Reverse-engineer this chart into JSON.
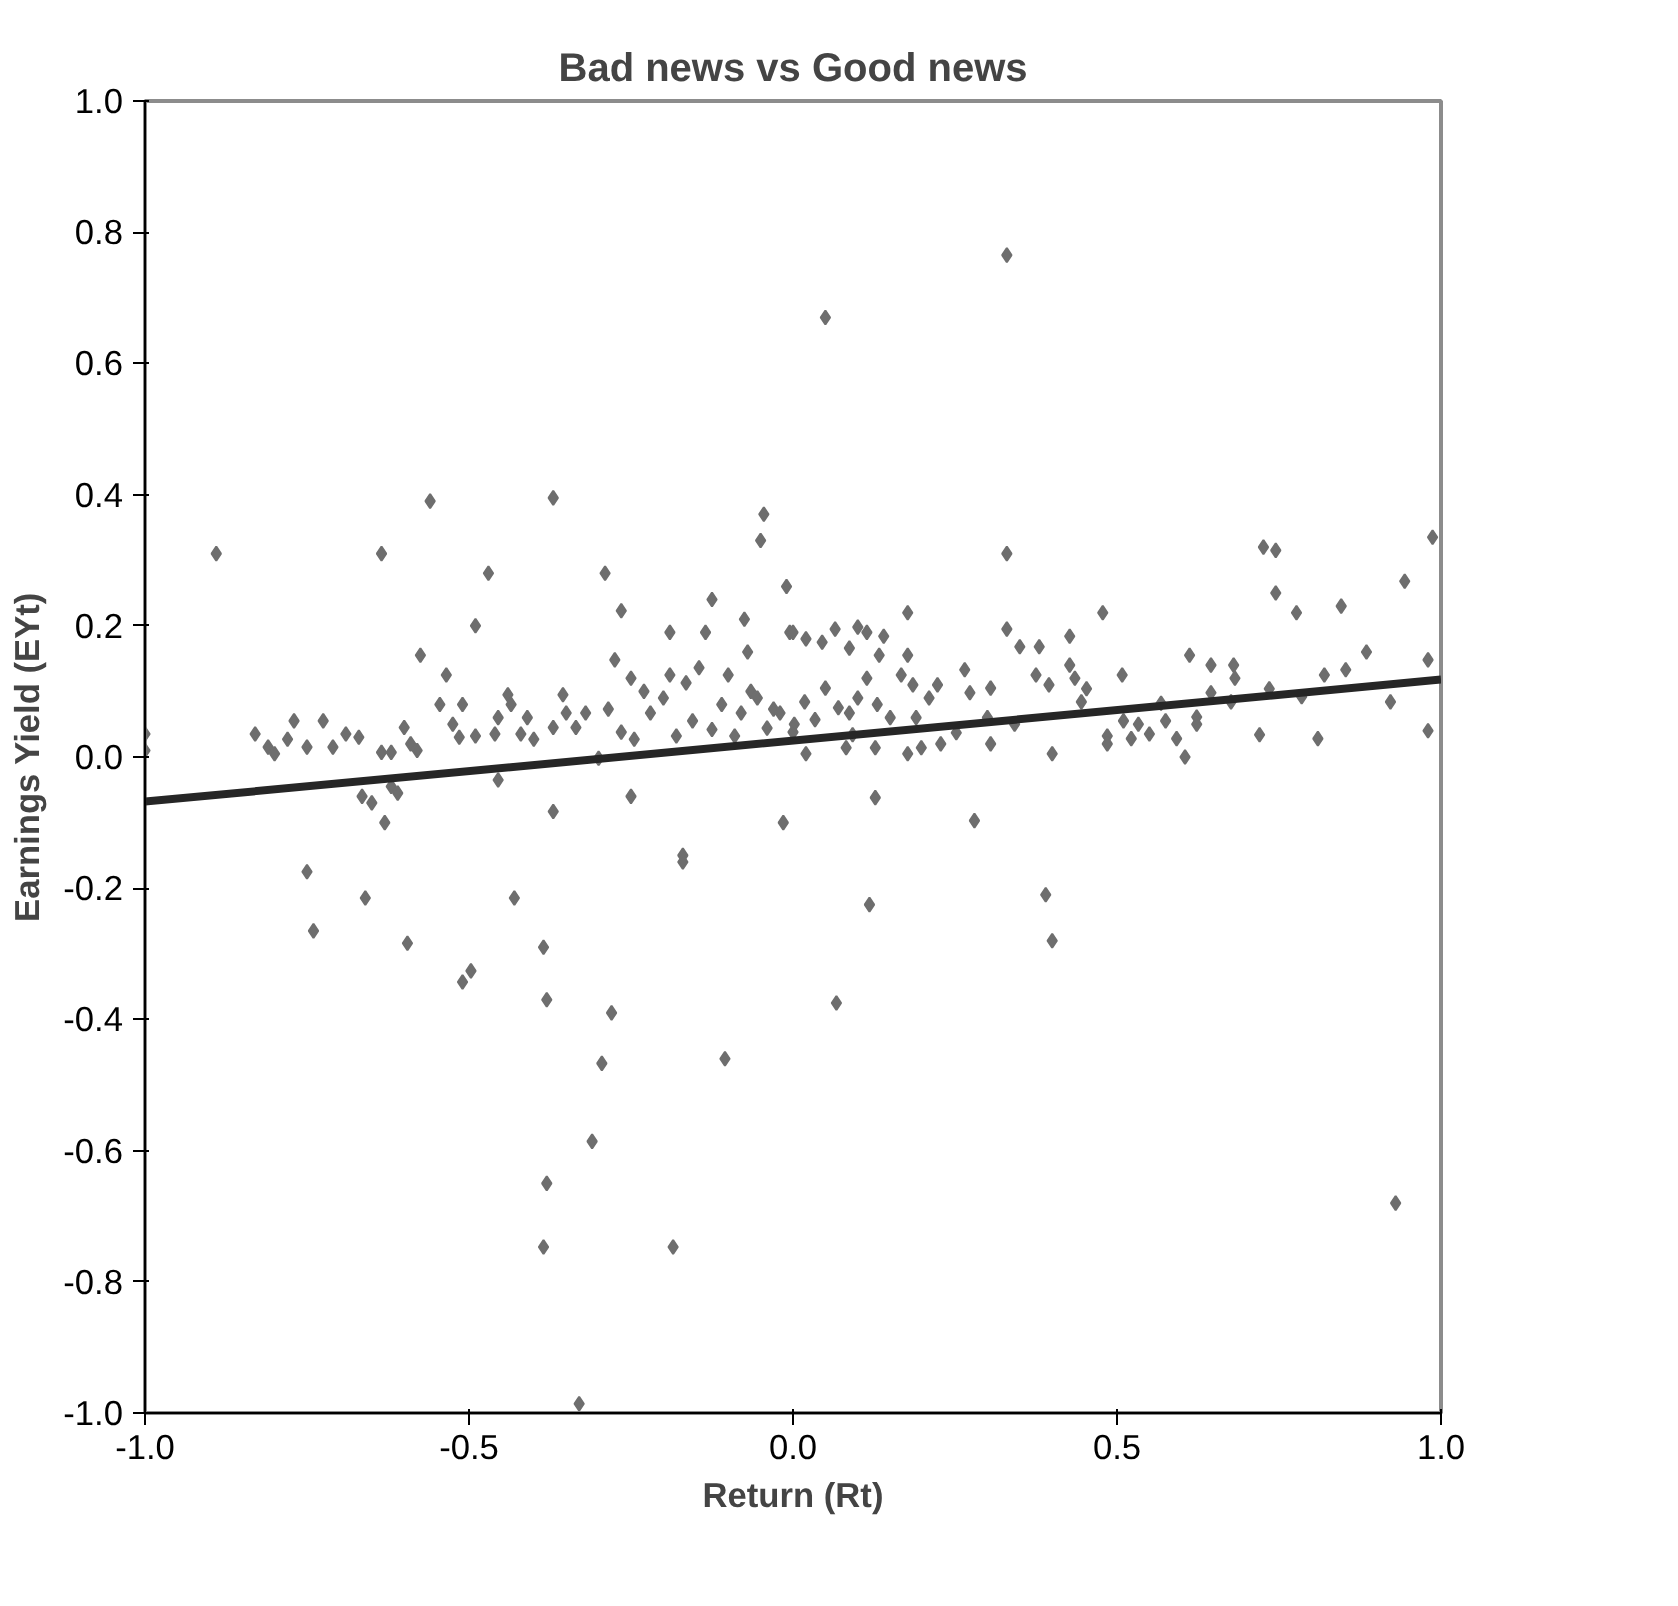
{
  "chart_data": {
    "type": "scatter",
    "title": "Bad news vs Good news",
    "xlabel": "Return (Rt)",
    "ylabel": "Earnings Yield (EYt)",
    "xlim": [
      -1.0,
      1.0
    ],
    "ylim": [
      -1.0,
      1.0
    ],
    "xticks": [
      {
        "value": -1.0,
        "label": "-1.0"
      },
      {
        "value": -0.5,
        "label": "-0.5"
      },
      {
        "value": 0,
        "label": "0.0"
      },
      {
        "value": 0.5,
        "label": "0.5"
      },
      {
        "value": 1.0,
        "label": "1.0"
      }
    ],
    "yticks": [
      {
        "value": -1.0,
        "label": "-1.0"
      },
      {
        "value": -0.8,
        "label": "-0.8"
      },
      {
        "value": -0.6,
        "label": "-0.6"
      },
      {
        "value": -0.4,
        "label": "-0.4"
      },
      {
        "value": -0.2,
        "label": "-0.2"
      },
      {
        "value": 0,
        "label": "0.0"
      },
      {
        "value": 0.2,
        "label": "0.2"
      },
      {
        "value": 0.4,
        "label": "0.4"
      },
      {
        "value": 0.6,
        "label": "0.6"
      },
      {
        "value": 0.8,
        "label": "0.8"
      },
      {
        "value": 1.0,
        "label": "1.0"
      }
    ],
    "grid": false,
    "series": [
      {
        "marker": "diamond",
        "color": "#6e6e6e",
        "x": [
          -0.89,
          -1.0,
          -1.0,
          -0.83,
          -0.81,
          -0.8,
          -0.78,
          -0.77,
          -0.75,
          -0.725,
          -0.71,
          -0.69,
          -0.67,
          -0.665,
          -0.65,
          -0.635,
          -0.635,
          -0.62,
          -0.63,
          -0.62,
          -0.61,
          -0.6,
          -0.59,
          -0.58,
          -0.575,
          -0.56,
          -0.545,
          -0.535,
          -0.525,
          -0.515,
          -0.51,
          -0.49,
          -0.49,
          -0.47,
          -0.46,
          -0.455,
          -0.455,
          -0.44,
          -0.435,
          -0.42,
          -0.41,
          -0.4,
          -0.37,
          -0.37,
          -0.37,
          -0.355,
          -0.35,
          -0.335,
          -0.32,
          -0.3,
          -0.29,
          -0.285,
          -0.275,
          -0.265,
          -0.265,
          -0.25,
          -0.245,
          -0.25,
          -0.23,
          -0.22,
          -0.2,
          -0.19,
          -0.19,
          -0.18,
          -0.17,
          -0.165,
          -0.155,
          -0.145,
          -0.135,
          -0.125,
          -0.125,
          -0.11,
          -0.1,
          -0.09,
          -0.08,
          -0.075,
          -0.07,
          -0.065,
          -0.055,
          -0.05,
          -0.045,
          -0.04,
          -0.03,
          -0.02,
          -0.015,
          -0.01,
          -0.005,
          0.0,
          0.05,
          0.33,
          0.33,
          0.0,
          0.02,
          0.045,
          0.065,
          0.087,
          0.1,
          0.114,
          0.14,
          0.177,
          0.133,
          0.114,
          0.05,
          0.018,
          0.07,
          0.1,
          0.13,
          0.177,
          0.167,
          0.185,
          0.21,
          0.223,
          0.265,
          0.273,
          0.305,
          0.33,
          0.35,
          0.38,
          0.375,
          0.395,
          0.427,
          0.427,
          0.435,
          0.453,
          0.445,
          0.478,
          0.508,
          0.002,
          0.034,
          0.087,
          0.092,
          0.082,
          0.02,
          0.127,
          0.15,
          0.19,
          0.198,
          0.177,
          0.228,
          0.252,
          0.3,
          0.305,
          0.342,
          0.4,
          0.485,
          0.485,
          0.51,
          0.522,
          0.533,
          0.55,
          0.568,
          0.575,
          0.592,
          0.605,
          0.612,
          0.623,
          0.623,
          0.645,
          0.645,
          0.676,
          0.68,
          0.682,
          0.72,
          0.726,
          0.745,
          0.735,
          0.745,
          0.777,
          0.785,
          0.81,
          0.82,
          0.846,
          0.853,
          0.885,
          0.922,
          0.944,
          0.98,
          0.98,
          0.987,
          0.127,
          0.28,
          -0.75,
          -0.74,
          -0.66,
          -0.595,
          -0.51,
          -0.497,
          -0.43,
          -0.385,
          -0.38,
          -0.28,
          -0.295,
          -0.105,
          -0.31,
          -0.38,
          -0.385,
          -0.33,
          -0.185,
          -0.17,
          0.067,
          0.118,
          0.39,
          0.4,
          0.93
        ],
        "values": [
          0.31,
          0.035,
          0.01,
          0.035,
          0.015,
          0.005,
          0.027,
          0.055,
          0.015,
          0.055,
          0.015,
          0.035,
          0.03,
          -0.06,
          -0.07,
          0.31,
          0.007,
          0.007,
          -0.1,
          -0.045,
          -0.055,
          0.045,
          0.02,
          0.01,
          0.155,
          0.39,
          0.08,
          0.125,
          0.05,
          0.03,
          0.08,
          0.2,
          0.032,
          0.28,
          0.035,
          0.06,
          -0.035,
          0.095,
          0.08,
          0.035,
          0.06,
          0.027,
          0.395,
          0.045,
          -0.083,
          0.095,
          0.067,
          0.045,
          0.067,
          -0.002,
          0.28,
          0.073,
          0.148,
          0.223,
          0.038,
          0.12,
          0.027,
          -0.06,
          0.1,
          0.067,
          0.09,
          0.125,
          0.19,
          0.032,
          -0.15,
          0.113,
          0.055,
          0.136,
          0.19,
          0.24,
          0.042,
          0.08,
          0.125,
          0.032,
          0.067,
          0.21,
          0.16,
          0.1,
          0.09,
          0.33,
          0.37,
          0.044,
          0.073,
          0.067,
          -0.1,
          0.26,
          0.19,
          0.038,
          0.67,
          0.765,
          0.31,
          0.19,
          0.18,
          0.175,
          0.195,
          0.166,
          0.198,
          0.19,
          0.184,
          0.22,
          0.155,
          0.12,
          0.105,
          0.084,
          0.075,
          0.09,
          0.08,
          0.155,
          0.125,
          0.11,
          0.09,
          0.11,
          0.133,
          0.098,
          0.105,
          0.195,
          0.168,
          0.168,
          0.125,
          0.11,
          0.184,
          0.14,
          0.12,
          0.104,
          0.084,
          0.22,
          0.125,
          0.05,
          0.057,
          0.067,
          0.034,
          0.014,
          0.005,
          0.014,
          0.06,
          0.06,
          0.014,
          0.005,
          0.02,
          0.037,
          0.06,
          0.02,
          0.05,
          0.005,
          0.032,
          0.02,
          0.055,
          0.028,
          0.05,
          0.035,
          0.082,
          0.055,
          0.028,
          0.0,
          0.155,
          0.061,
          0.05,
          0.14,
          0.098,
          0.084,
          0.14,
          0.12,
          0.034,
          0.32,
          0.315,
          0.104,
          0.25,
          0.22,
          0.092,
          0.028,
          0.125,
          0.23,
          0.133,
          0.16,
          0.084,
          0.268,
          0.148,
          0.04,
          0.335,
          -0.062,
          -0.097,
          -0.175,
          -0.265,
          -0.215,
          -0.284,
          -0.343,
          -0.326,
          -0.215,
          -0.29,
          -0.37,
          -0.39,
          -0.467,
          -0.46,
          -0.586,
          -0.65,
          -0.747,
          -0.986,
          -0.747,
          -0.16,
          -0.375,
          -0.225,
          -0.21,
          -0.28,
          -0.68
        ]
      },
      {
        "type": "line",
        "color": "#262626",
        "x": [
          -1.0,
          1.0
        ],
        "values": [
          -0.068,
          0.118
        ]
      }
    ]
  }
}
